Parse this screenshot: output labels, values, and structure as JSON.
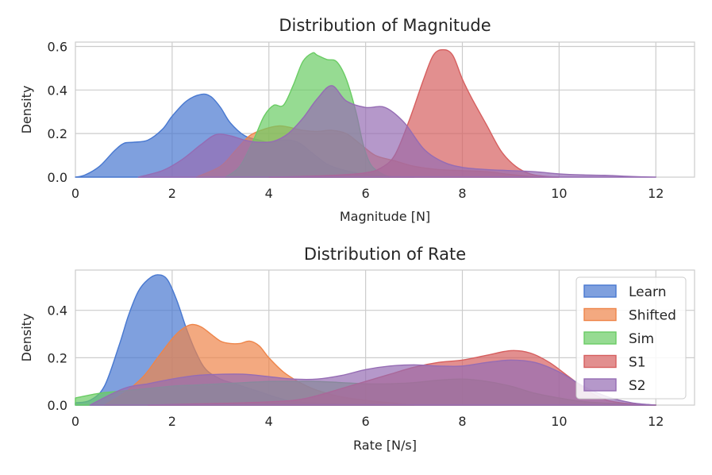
{
  "chart_data": [
    {
      "type": "area",
      "title": "Distribution of Magnitude",
      "xlabel": "Magnitude [N]",
      "ylabel": "Density",
      "xlim": [
        0,
        12.8
      ],
      "ylim": [
        0,
        0.62
      ],
      "xticks": [
        0,
        2,
        4,
        6,
        8,
        10,
        12
      ],
      "yticks": [
        0.0,
        0.2,
        0.4,
        0.6
      ],
      "xtick_labels": [
        "0",
        "2",
        "4",
        "6",
        "8",
        "10",
        "12"
      ],
      "ytick_labels": [
        "0.0",
        "0.2",
        "0.4",
        "0.6"
      ],
      "grid": true,
      "series": [
        {
          "name": "Learn",
          "color": "#4878d0",
          "x": [
            0,
            0.2,
            0.5,
            0.8,
            1.0,
            1.2,
            1.5,
            1.8,
            2.0,
            2.3,
            2.6,
            2.8,
            3.0,
            3.2,
            3.5,
            3.8,
            4.0,
            4.3,
            4.6,
            4.9,
            5.2,
            5.5,
            5.8,
            6.1,
            6.5,
            7.0
          ],
          "y": [
            0,
            0.01,
            0.05,
            0.12,
            0.155,
            0.16,
            0.17,
            0.22,
            0.28,
            0.35,
            0.38,
            0.37,
            0.32,
            0.25,
            0.19,
            0.17,
            0.16,
            0.17,
            0.16,
            0.11,
            0.06,
            0.035,
            0.02,
            0.01,
            0.003,
            0
          ]
        },
        {
          "name": "Shifted",
          "color": "#ee854a",
          "x": [
            2.5,
            3.0,
            3.3,
            3.6,
            3.9,
            4.2,
            4.4,
            4.7,
            5.0,
            5.3,
            5.6,
            5.9,
            6.2,
            6.6,
            7.0,
            7.5,
            8.0,
            8.5,
            9.0,
            9.3,
            9.6
          ],
          "y": [
            0,
            0.05,
            0.12,
            0.19,
            0.22,
            0.235,
            0.23,
            0.215,
            0.21,
            0.215,
            0.2,
            0.15,
            0.1,
            0.075,
            0.05,
            0.035,
            0.03,
            0.025,
            0.012,
            0.005,
            0
          ]
        },
        {
          "name": "Sim",
          "color": "#6acc64",
          "x": [
            3.1,
            3.4,
            3.7,
            3.9,
            4.1,
            4.3,
            4.5,
            4.7,
            4.9,
            5.0,
            5.2,
            5.4,
            5.6,
            5.8,
            5.95,
            6.1,
            6.3,
            6.5
          ],
          "y": [
            0,
            0.05,
            0.18,
            0.28,
            0.33,
            0.33,
            0.42,
            0.53,
            0.57,
            0.56,
            0.54,
            0.53,
            0.45,
            0.3,
            0.15,
            0.06,
            0.02,
            0
          ]
        },
        {
          "name": "S1",
          "color": "#d65f5f",
          "x": [
            4.0,
            4.5,
            5.0,
            5.5,
            6.0,
            6.3,
            6.6,
            6.9,
            7.2,
            7.4,
            7.6,
            7.8,
            8.0,
            8.2,
            8.5,
            8.8,
            9.1,
            9.4,
            9.7,
            10.0
          ],
          "y": [
            0,
            0.002,
            0.005,
            0.01,
            0.02,
            0.04,
            0.1,
            0.26,
            0.45,
            0.56,
            0.585,
            0.56,
            0.45,
            0.36,
            0.24,
            0.12,
            0.05,
            0.015,
            0.004,
            0
          ]
        },
        {
          "name": "S2",
          "color": "#956cb4",
          "x": [
            1.3,
            1.8,
            2.2,
            2.6,
            2.9,
            3.2,
            3.5,
            3.8,
            4.1,
            4.4,
            4.7,
            5.0,
            5.3,
            5.6,
            6.0,
            6.4,
            6.8,
            7.2,
            7.6,
            8.0,
            8.5,
            9.0,
            9.5,
            10.0,
            10.5,
            11.0,
            11.5,
            12.0
          ],
          "y": [
            0,
            0.03,
            0.08,
            0.15,
            0.195,
            0.19,
            0.17,
            0.16,
            0.165,
            0.2,
            0.27,
            0.36,
            0.42,
            0.35,
            0.32,
            0.32,
            0.25,
            0.13,
            0.07,
            0.045,
            0.035,
            0.03,
            0.025,
            0.015,
            0.01,
            0.008,
            0.003,
            0
          ]
        }
      ]
    },
    {
      "type": "area",
      "title": "Distribution of Rate",
      "xlabel": "Rate [N/s]",
      "ylabel": "Density",
      "xlim": [
        0,
        12.8
      ],
      "ylim": [
        0,
        0.57
      ],
      "xticks": [
        0,
        2,
        4,
        6,
        8,
        10,
        12
      ],
      "yticks": [
        0.0,
        0.2,
        0.4
      ],
      "xtick_labels": [
        "0",
        "2",
        "4",
        "6",
        "8",
        "10",
        "12"
      ],
      "ytick_labels": [
        "0.0",
        "0.2",
        "0.4"
      ],
      "grid": true,
      "legend": {
        "position": "right",
        "entries": [
          "Learn",
          "Shifted",
          "Sim",
          "S1",
          "S2"
        ]
      },
      "series": [
        {
          "name": "Learn",
          "color": "#4878d0",
          "x": [
            0,
            0.3,
            0.6,
            0.9,
            1.1,
            1.3,
            1.5,
            1.7,
            1.9,
            2.1,
            2.3,
            2.5,
            2.7,
            3.0,
            3.3,
            3.6,
            3.9,
            4.2,
            4.5,
            5.0,
            5.5,
            6.0,
            6.5
          ],
          "y": [
            0.01,
            0.02,
            0.08,
            0.25,
            0.38,
            0.48,
            0.53,
            0.55,
            0.53,
            0.44,
            0.32,
            0.22,
            0.15,
            0.11,
            0.09,
            0.07,
            0.05,
            0.03,
            0.015,
            0.008,
            0.004,
            0.002,
            0
          ]
        },
        {
          "name": "Shifted",
          "color": "#ee854a",
          "x": [
            0.6,
            1.0,
            1.4,
            1.7,
            2.0,
            2.2,
            2.4,
            2.6,
            2.8,
            3.0,
            3.2,
            3.4,
            3.6,
            3.8,
            4.0,
            4.3,
            4.6,
            4.9,
            5.2,
            5.5,
            6.0,
            6.5,
            7.0
          ],
          "y": [
            0,
            0.05,
            0.12,
            0.2,
            0.28,
            0.32,
            0.34,
            0.33,
            0.3,
            0.27,
            0.26,
            0.26,
            0.27,
            0.25,
            0.2,
            0.14,
            0.1,
            0.07,
            0.05,
            0.035,
            0.02,
            0.01,
            0
          ]
        },
        {
          "name": "Sim",
          "color": "#6acc64",
          "x": [
            0,
            0.5,
            1.0,
            1.5,
            2.0,
            2.5,
            3.0,
            3.5,
            4.0,
            4.5,
            5.0,
            5.5,
            6.0,
            6.5,
            7.0,
            7.5,
            8.0,
            8.5,
            9.0,
            9.5,
            10.0,
            10.5,
            11.0,
            11.5,
            12.0
          ],
          "y": [
            0.03,
            0.05,
            0.06,
            0.07,
            0.08,
            0.085,
            0.09,
            0.095,
            0.1,
            0.1,
            0.1,
            0.095,
            0.09,
            0.09,
            0.095,
            0.105,
            0.11,
            0.1,
            0.08,
            0.05,
            0.03,
            0.015,
            0.008,
            0.004,
            0
          ]
        },
        {
          "name": "S1",
          "color": "#d65f5f",
          "x": [
            1.5,
            2.5,
            3.5,
            4.5,
            5.0,
            5.5,
            6.0,
            6.5,
            7.0,
            7.5,
            8.0,
            8.5,
            9.0,
            9.4,
            9.8,
            10.2,
            10.6,
            11.0,
            11.5,
            12.0
          ],
          "y": [
            0,
            0.005,
            0.01,
            0.02,
            0.04,
            0.07,
            0.1,
            0.13,
            0.16,
            0.18,
            0.19,
            0.21,
            0.23,
            0.22,
            0.18,
            0.12,
            0.06,
            0.02,
            0.005,
            0
          ]
        },
        {
          "name": "S2",
          "color": "#956cb4",
          "x": [
            0.3,
            1.0,
            1.5,
            2.0,
            2.5,
            3.0,
            3.5,
            4.0,
            4.5,
            5.0,
            5.5,
            6.0,
            6.5,
            7.0,
            7.5,
            8.0,
            8.5,
            9.0,
            9.5,
            10.0,
            10.5,
            11.0,
            11.5,
            12.0
          ],
          "y": [
            0,
            0.07,
            0.09,
            0.11,
            0.125,
            0.13,
            0.13,
            0.12,
            0.11,
            0.11,
            0.125,
            0.15,
            0.165,
            0.17,
            0.165,
            0.165,
            0.18,
            0.19,
            0.18,
            0.14,
            0.08,
            0.035,
            0.01,
            0
          ]
        }
      ]
    }
  ]
}
